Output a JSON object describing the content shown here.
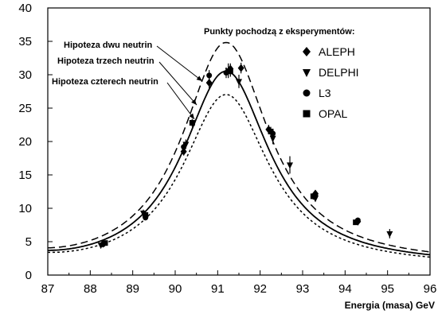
{
  "chart_data": {
    "type": "line",
    "title": "",
    "xlabel": "Energia (masa) GeV",
    "ylabel": "",
    "xlim": [
      87,
      96
    ],
    "ylim": [
      0,
      40
    ],
    "x_ticks": [
      87,
      88,
      89,
      90,
      91,
      92,
      93,
      94,
      95,
      96
    ],
    "y_ticks": [
      0,
      5,
      10,
      15,
      20,
      25,
      30,
      35,
      40
    ],
    "grid": false,
    "legend_title": "Punkty pochodzą z eksperymentów:",
    "legend_position": "top-right",
    "legend": [
      {
        "name": "ALEPH",
        "marker": "diamond"
      },
      {
        "name": "DELPHI",
        "marker": "triangle-down"
      },
      {
        "name": "L3",
        "marker": "circle"
      },
      {
        "name": "OPAL",
        "marker": "square"
      }
    ],
    "series": [
      {
        "name": "Hipoteza dwu neutrin",
        "style": "dashed",
        "peak_x": 91.19,
        "peak_y": 34.8,
        "width": 2.5
      },
      {
        "name": "Hipoteza trzech neutrin",
        "style": "solid",
        "peak_x": 91.19,
        "peak_y": 30.5,
        "width": 2.5
      },
      {
        "name": "Hipoteza czterech neutrin",
        "style": "dotted",
        "peak_x": 91.19,
        "peak_y": 27.0,
        "width": 2.5
      }
    ],
    "points": [
      {
        "experiment": "ALEPH",
        "x": 88.3,
        "y": 4.7,
        "err": 0.3
      },
      {
        "experiment": "ALEPH",
        "x": 89.3,
        "y": 8.8,
        "err": 0.4
      },
      {
        "experiment": "ALEPH",
        "x": 90.2,
        "y": 18.5,
        "err": 0.6
      },
      {
        "experiment": "ALEPH",
        "x": 90.8,
        "y": 28.8,
        "err": 0.8
      },
      {
        "experiment": "ALEPH",
        "x": 91.3,
        "y": 30.9,
        "err": 0.8
      },
      {
        "experiment": "ALEPH",
        "x": 91.55,
        "y": 31.0,
        "err": 0.8
      },
      {
        "experiment": "ALEPH",
        "x": 92.2,
        "y": 21.8,
        "err": 0.7
      },
      {
        "experiment": "ALEPH",
        "x": 93.3,
        "y": 12.2,
        "err": 0.5
      },
      {
        "experiment": "ALEPH",
        "x": 94.3,
        "y": 8.0,
        "err": 0.4
      },
      {
        "experiment": "DELPHI",
        "x": 88.25,
        "y": 4.5,
        "err": 0.3
      },
      {
        "experiment": "DELPHI",
        "x": 89.25,
        "y": 9.3,
        "err": 0.5
      },
      {
        "experiment": "DELPHI",
        "x": 90.25,
        "y": 19.6,
        "err": 0.7
      },
      {
        "experiment": "DELPHI",
        "x": 91.25,
        "y": 30.6,
        "err": 1.1
      },
      {
        "experiment": "DELPHI",
        "x": 91.5,
        "y": 29.0,
        "err": 1.0
      },
      {
        "experiment": "DELPHI",
        "x": 92.3,
        "y": 20.5,
        "err": 0.9
      },
      {
        "experiment": "DELPHI",
        "x": 92.7,
        "y": 16.5,
        "err": 1.3
      },
      {
        "experiment": "DELPHI",
        "x": 93.3,
        "y": 11.5,
        "err": 0.5
      },
      {
        "experiment": "DELPHI",
        "x": 95.05,
        "y": 6.2,
        "err": 0.7
      },
      {
        "experiment": "L3",
        "x": 88.3,
        "y": 4.6,
        "err": 0.3
      },
      {
        "experiment": "L3",
        "x": 89.3,
        "y": 8.6,
        "err": 0.4
      },
      {
        "experiment": "L3",
        "x": 90.2,
        "y": 19.2,
        "err": 0.6
      },
      {
        "experiment": "L3",
        "x": 90.8,
        "y": 29.9,
        "err": 0.8
      },
      {
        "experiment": "L3",
        "x": 91.2,
        "y": 30.3,
        "err": 0.8
      },
      {
        "experiment": "L3",
        "x": 92.3,
        "y": 21.2,
        "err": 0.7
      },
      {
        "experiment": "L3",
        "x": 93.3,
        "y": 12.0,
        "err": 0.5
      },
      {
        "experiment": "L3",
        "x": 94.3,
        "y": 8.2,
        "err": 0.4
      },
      {
        "experiment": "OPAL",
        "x": 88.35,
        "y": 4.8,
        "err": 0.3
      },
      {
        "experiment": "OPAL",
        "x": 89.3,
        "y": 9.0,
        "err": 0.4
      },
      {
        "experiment": "OPAL",
        "x": 90.4,
        "y": 22.8,
        "err": 0.6
      },
      {
        "experiment": "OPAL",
        "x": 91.3,
        "y": 30.5,
        "err": 0.8
      },
      {
        "experiment": "OPAL",
        "x": 92.25,
        "y": 21.5,
        "err": 0.7
      },
      {
        "experiment": "OPAL",
        "x": 93.25,
        "y": 11.8,
        "err": 0.5
      },
      {
        "experiment": "OPAL",
        "x": 94.25,
        "y": 7.9,
        "err": 0.4
      }
    ]
  }
}
